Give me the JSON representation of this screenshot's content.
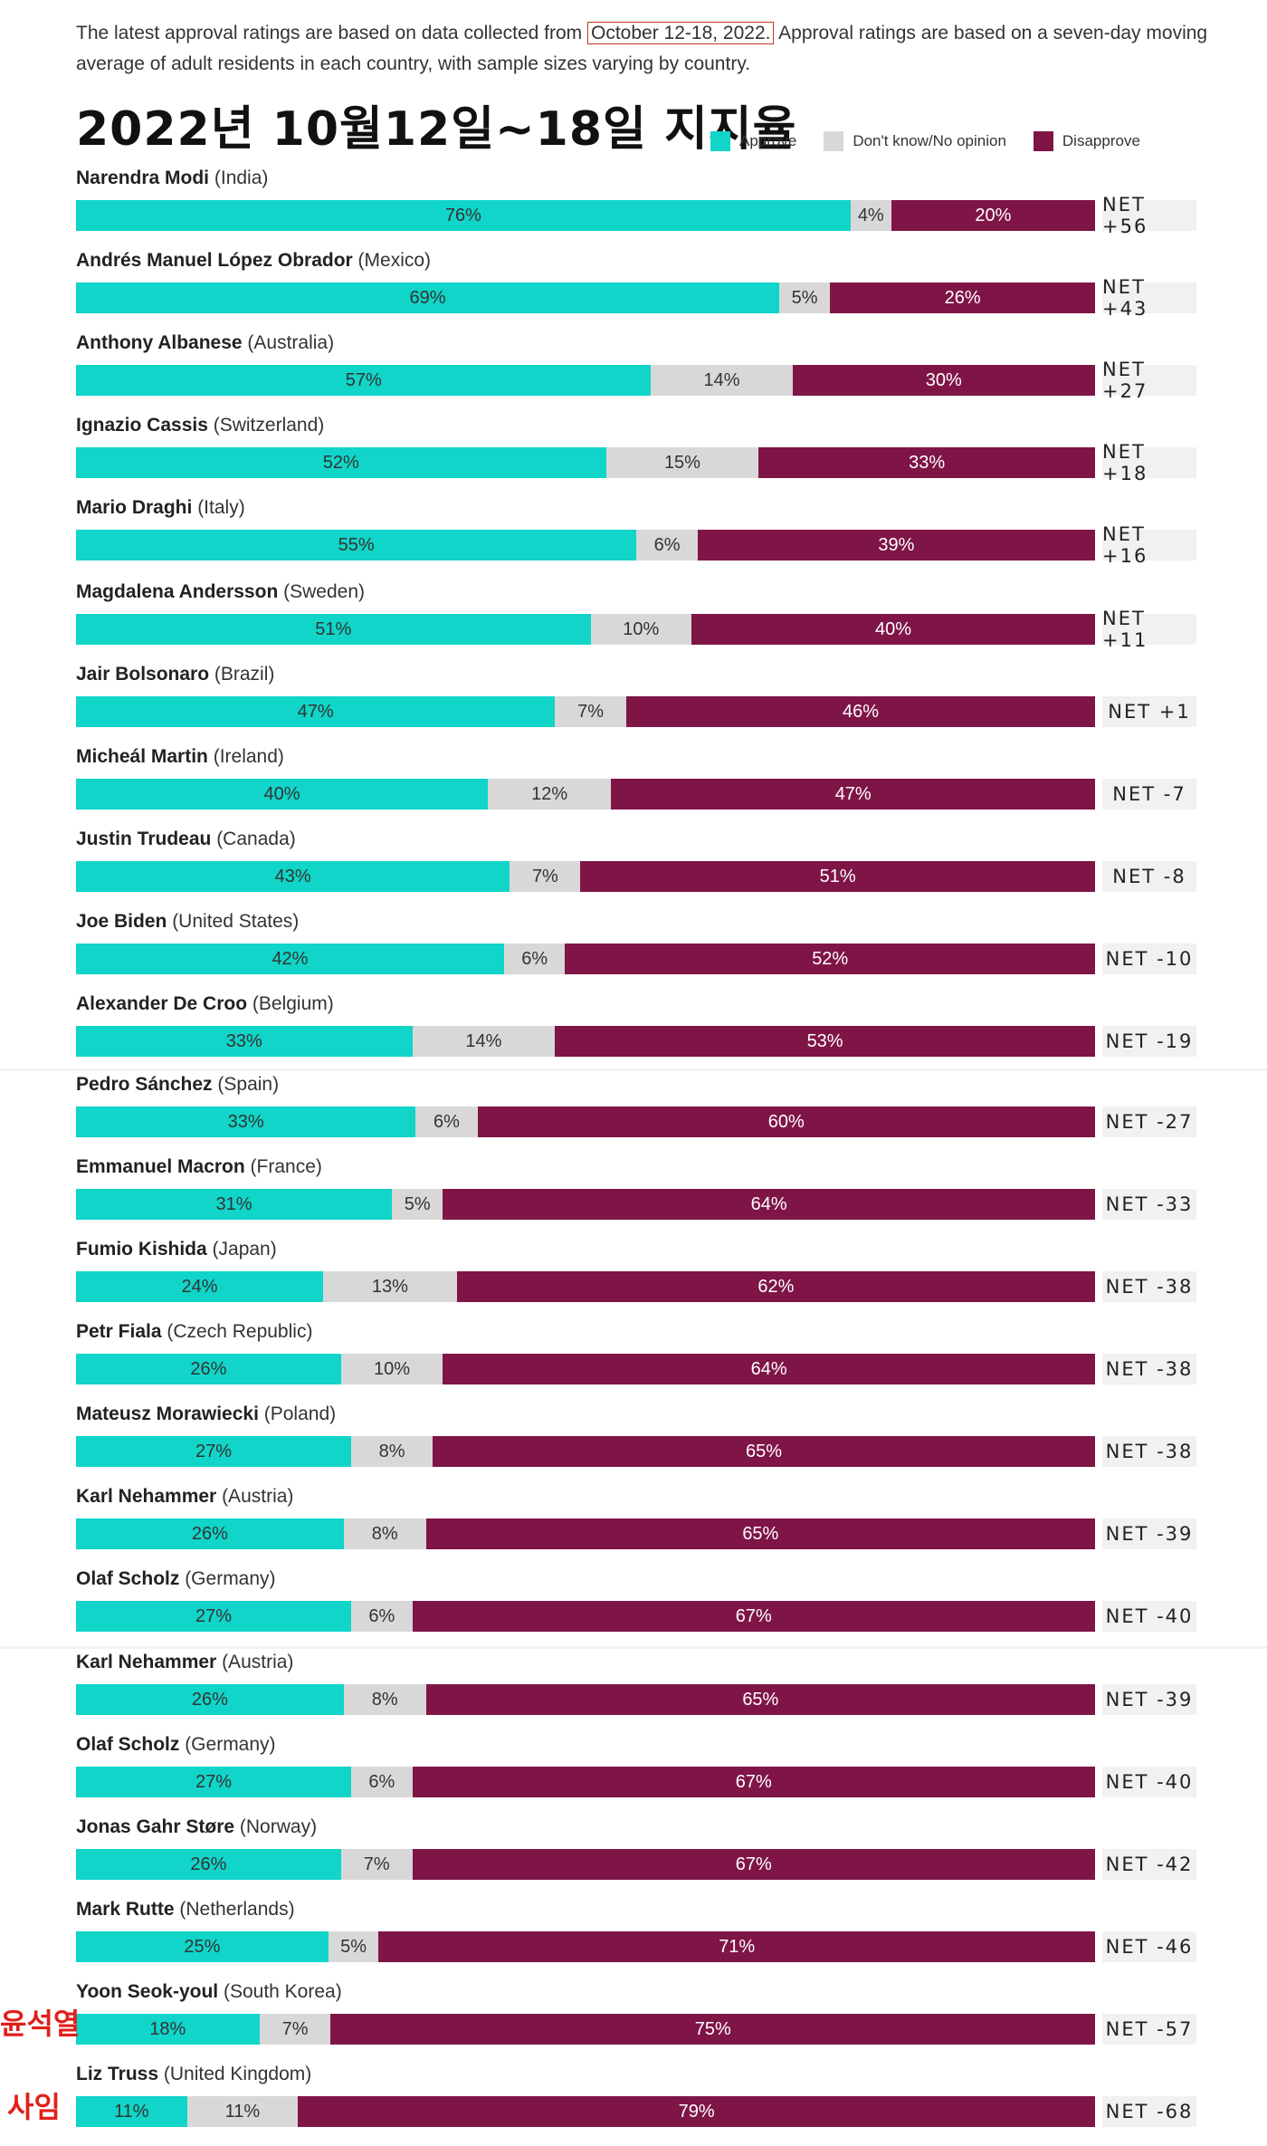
{
  "intro": {
    "before": "The latest approval ratings are based on data collected from ",
    "highlight": "October 12-18, 2022.",
    "after": " Approval ratings are based on a seven-day moving average of adult residents in each country, with sample sizes varying by country."
  },
  "korean_title": "2022년 10월12일~18일 지지율",
  "annotations": {
    "yoon": "윤석열",
    "truss": "사임"
  },
  "colors": {
    "approve": "#10d5c8",
    "dont_know": "#d8d8d8",
    "disapprove": "#7f1547",
    "annotation": "#e0201b"
  },
  "chart_data": {
    "type": "bar",
    "orientation": "horizontal-stacked-100",
    "legend": [
      "Approve",
      "Don't know/No opinion",
      "Disapprove"
    ],
    "legend_position": "top-right",
    "rows": [
      {
        "leader": "Narendra Modi",
        "country": "(India)",
        "approve": 76,
        "dk": 4,
        "disapprove": 20,
        "net": "NET +56"
      },
      {
        "leader": "Andrés Manuel López Obrador",
        "country": "(Mexico)",
        "approve": 69,
        "dk": 5,
        "disapprove": 26,
        "net": "NET +43"
      },
      {
        "leader": "Anthony Albanese",
        "country": "(Australia)",
        "approve": 57,
        "dk": 14,
        "disapprove": 30,
        "net": "NET +27"
      },
      {
        "leader": "Ignazio Cassis",
        "country": "(Switzerland)",
        "approve": 52,
        "dk": 15,
        "disapprove": 33,
        "net": "NET +18"
      },
      {
        "leader": "Mario Draghi",
        "country": "(Italy)",
        "approve": 55,
        "dk": 6,
        "disapprove": 39,
        "net": "NET +16"
      },
      {
        "leader": "Magdalena Andersson",
        "country": "(Sweden)",
        "approve": 51,
        "dk": 10,
        "disapprove": 40,
        "net": "NET +11"
      },
      {
        "leader": "Jair Bolsonaro",
        "country": "(Brazil)",
        "approve": 47,
        "dk": 7,
        "disapprove": 46,
        "net": "NET +1"
      },
      {
        "leader": "Micheál Martin",
        "country": "(Ireland)",
        "approve": 40,
        "dk": 12,
        "disapprove": 47,
        "net": "NET -7"
      },
      {
        "leader": "Justin Trudeau",
        "country": "(Canada)",
        "approve": 43,
        "dk": 7,
        "disapprove": 51,
        "net": "NET -8"
      },
      {
        "leader": "Joe Biden",
        "country": "(United States)",
        "approve": 42,
        "dk": 6,
        "disapprove": 52,
        "net": "NET -10"
      },
      {
        "leader": "Alexander De Croo",
        "country": "(Belgium)",
        "approve": 33,
        "dk": 14,
        "disapprove": 53,
        "net": "NET -19"
      },
      {
        "leader": "Pedro Sánchez",
        "country": "(Spain)",
        "approve": 33,
        "dk": 6,
        "disapprove": 60,
        "net": "NET -27"
      },
      {
        "leader": "Emmanuel Macron",
        "country": "(France)",
        "approve": 31,
        "dk": 5,
        "disapprove": 64,
        "net": "NET -33"
      },
      {
        "leader": "Fumio Kishida",
        "country": "(Japan)",
        "approve": 24,
        "dk": 13,
        "disapprove": 62,
        "net": "NET -38"
      },
      {
        "leader": "Petr Fiala",
        "country": "(Czech Republic)",
        "approve": 26,
        "dk": 10,
        "disapprove": 64,
        "net": "NET -38"
      },
      {
        "leader": "Mateusz Morawiecki",
        "country": "(Poland)",
        "approve": 27,
        "dk": 8,
        "disapprove": 65,
        "net": "NET -38"
      },
      {
        "leader": "Karl Nehammer",
        "country": "(Austria)",
        "approve": 26,
        "dk": 8,
        "disapprove": 65,
        "net": "NET -39"
      },
      {
        "leader": "Olaf Scholz",
        "country": "(Germany)",
        "approve": 27,
        "dk": 6,
        "disapprove": 67,
        "net": "NET -40"
      },
      {
        "leader": "Karl Nehammer",
        "country": "(Austria)",
        "approve": 26,
        "dk": 8,
        "disapprove": 65,
        "net": "NET -39"
      },
      {
        "leader": "Olaf Scholz",
        "country": "(Germany)",
        "approve": 27,
        "dk": 6,
        "disapprove": 67,
        "net": "NET -40"
      },
      {
        "leader": "Jonas Gahr Støre",
        "country": "(Norway)",
        "approve": 26,
        "dk": 7,
        "disapprove": 67,
        "net": "NET -42"
      },
      {
        "leader": "Mark Rutte",
        "country": "(Netherlands)",
        "approve": 25,
        "dk": 5,
        "disapprove": 71,
        "net": "NET -46"
      },
      {
        "leader": "Yoon Seok-youl",
        "country": "(South Korea)",
        "approve": 18,
        "dk": 7,
        "disapprove": 75,
        "net": "NET -57"
      },
      {
        "leader": "Liz Truss",
        "country": "(United Kingdom)",
        "approve": 11,
        "dk": 11,
        "disapprove": 79,
        "net": "NET -68"
      }
    ]
  }
}
